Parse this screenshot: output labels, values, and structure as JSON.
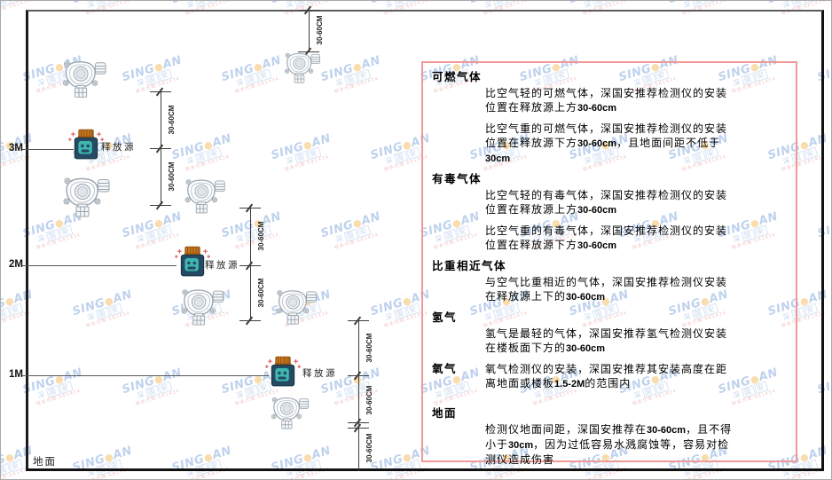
{
  "watermark": {
    "brand_left": "SING",
    "brand_dot": "●",
    "brand_right": "AN",
    "brand_cn": "深国安",
    "agent_line": "联系代理:681434"
  },
  "diagram": {
    "dim_label": "30-60CM",
    "height_3m": "3M",
    "height_2m": "2M",
    "height_1m": "1M",
    "ground_label": "地面",
    "release_source_label": "释放源"
  },
  "panel": {
    "border_color": "#f19898",
    "sections": [
      {
        "heading": "可燃气体",
        "paragraphs": [
          "比空气轻的可燃气体，深国安推荐检测仪的安装位置在释放源上方30-60cm",
          "比空气重的可燃气体，深国安推荐检测仪的安装位置在释放源下方30-60cm，且地面间距不低于30cm"
        ]
      },
      {
        "heading": "有毒气体",
        "paragraphs": [
          "比空气轻的有毒气体，深国安推荐检测仪的安装位置在释放源上方30-60cm",
          "比空气重的有毒气体，深国安推荐检测仪的安装位置在释放源下方30-60cm"
        ]
      },
      {
        "heading": "比重相近气体",
        "paragraphs": [
          "与空气比重相近的气体，深国安推荐检测仪安装在释放源上下的30-60cm"
        ]
      },
      {
        "heading": "氢气",
        "paragraphs": [
          "氢气是最轻的气体，深国安推荐氢气检测仪安装在楼板面下方的30-60cm"
        ]
      },
      {
        "heading": "氧气",
        "inline": true,
        "paragraphs": [
          "氧气检测仪的安装，深国安推荐其安装高度在距离地面或楼板1.5-2M的范围内"
        ]
      },
      {
        "heading": "地面",
        "paragraphs": [
          "检测仪地面间距，深国安推荐在30-60cm，且不得小于30cm，因为过低容易水溅腐蚀等，容易对检测仪造成伤害"
        ]
      }
    ]
  },
  "colors": {
    "panel_border": "#f19898",
    "release_source_body": "#254a63",
    "release_source_cap": "#c8771d",
    "release_source_face": "#3eb8ae",
    "sparkle_red": "#dd5555",
    "watermark_blue": "#5a8ad2",
    "watermark_red": "#e06868"
  }
}
